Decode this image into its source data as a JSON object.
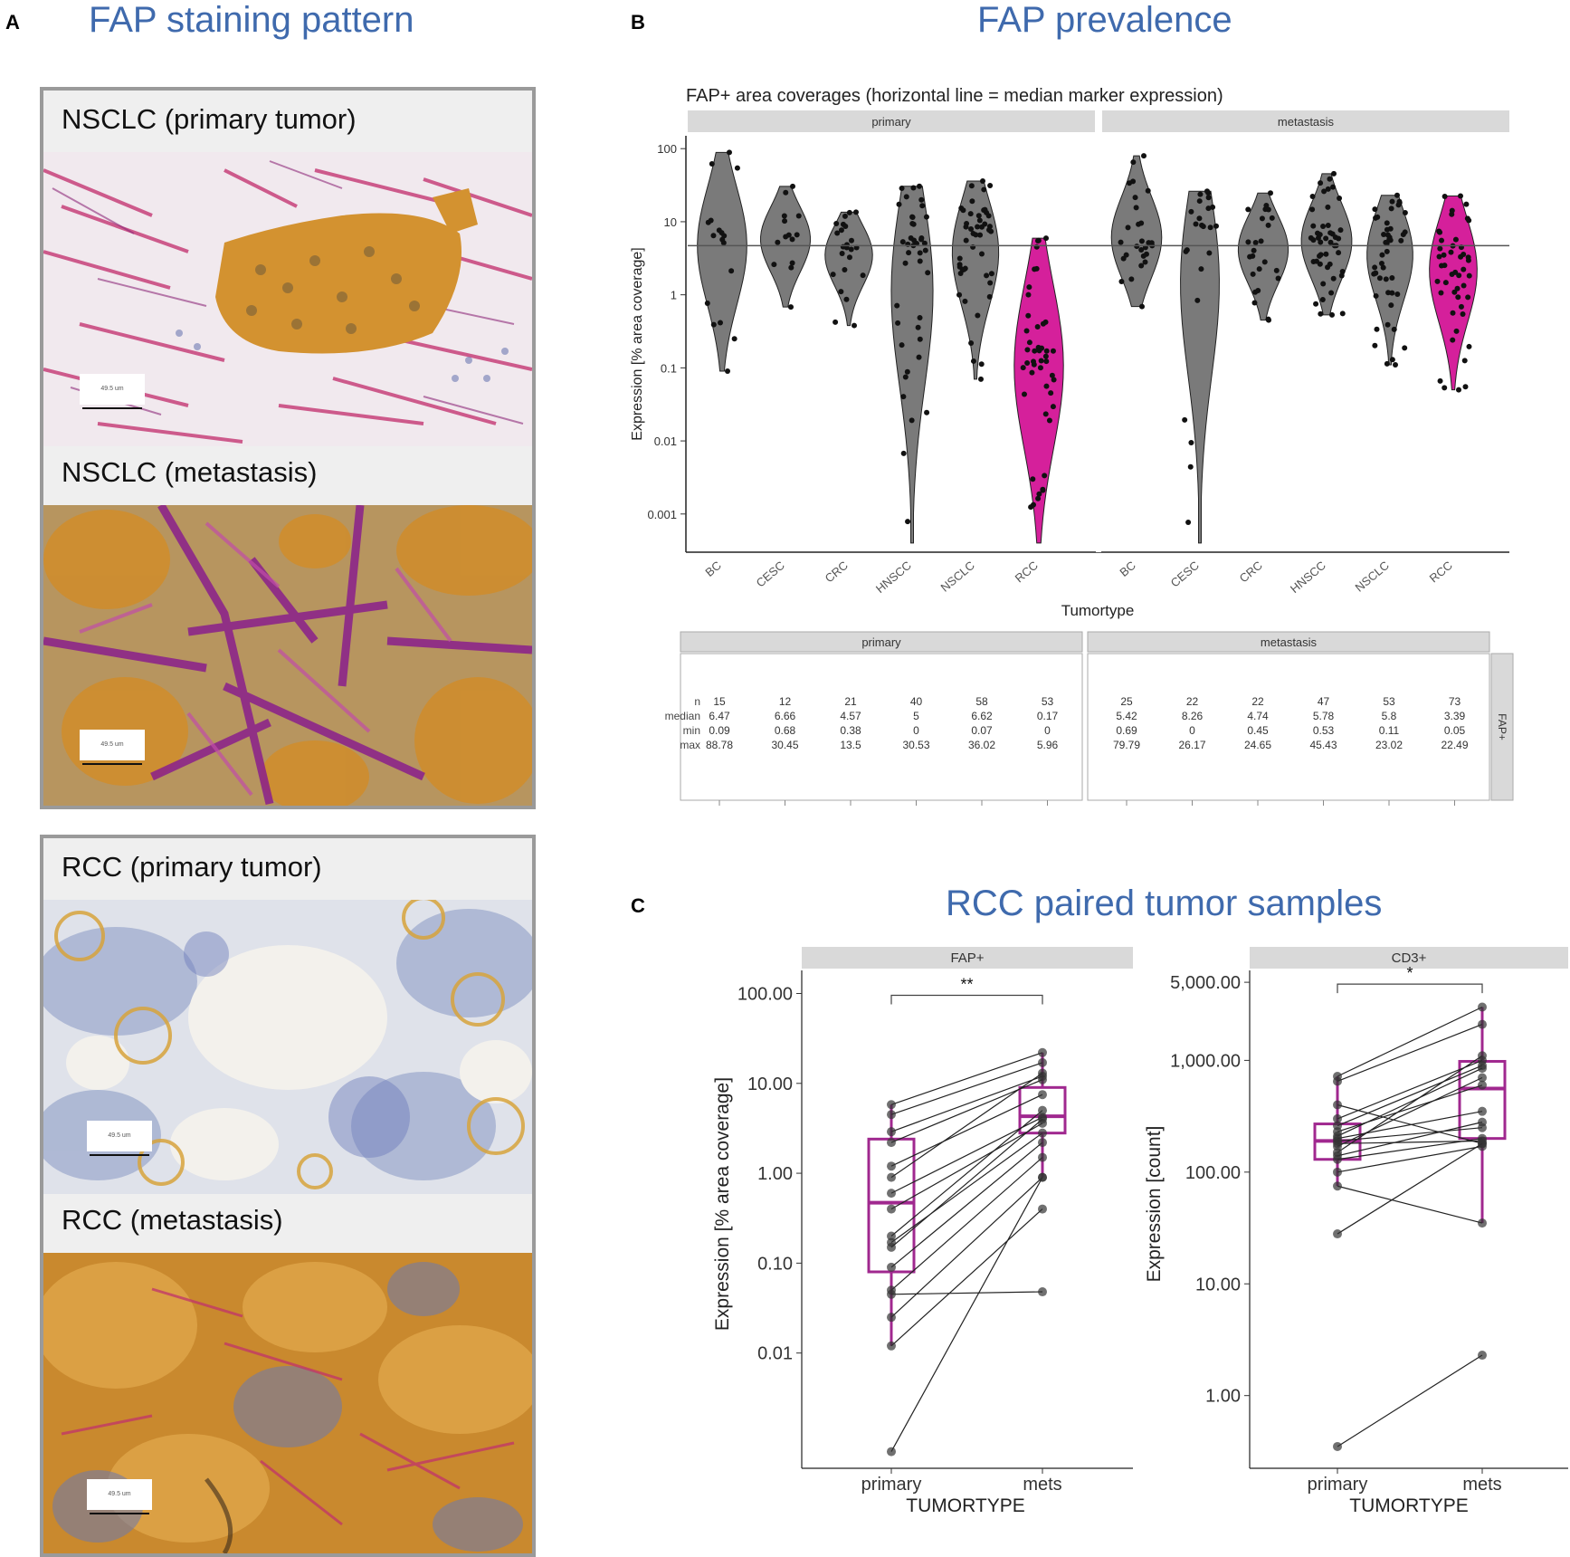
{
  "panel_a": {
    "letter": "A",
    "title": "FAP staining pattern",
    "images": [
      {
        "caption": "NSCLC (primary tumor)",
        "scale_label": "49.5 um"
      },
      {
        "caption": "NSCLC (metastasis)",
        "scale_label": "49.5 um"
      },
      {
        "caption": "RCC (primary tumor)",
        "scale_label": "49.5 um"
      },
      {
        "caption": "RCC (metastasis)",
        "scale_label": "49.5 um"
      }
    ]
  },
  "panel_b": {
    "letter": "B",
    "title": "FAP prevalence"
  },
  "panel_c": {
    "letter": "C",
    "title": "RCC paired tumor samples"
  },
  "colors": {
    "rcc_magenta": "#d5209b",
    "violin_gray": "#7a7a7a",
    "strip_gray": "#d9d9d9",
    "title_blue": "#3f6aad",
    "box_purple": "#a0288f"
  },
  "chart_data": [
    {
      "type": "violin",
      "title": "FAP+ area coverages (horizontal line = median marker expression)",
      "xlabel": "Tumortype",
      "ylabel": "Expression [% area coverage]",
      "y_scale": "log10",
      "ylim": [
        0.0003,
        150
      ],
      "y_ticks": [
        "100",
        "10",
        "1",
        "0.1",
        "0.01",
        "0.001"
      ],
      "y_tick_values": [
        100,
        10,
        1,
        0.1,
        0.01,
        0.001
      ],
      "overall_median_line": 4.7,
      "facets": [
        "primary",
        "metastasis"
      ],
      "categories": [
        "BC",
        "CESC",
        "CRC",
        "HNSCC",
        "NSCLC",
        "RCC"
      ],
      "series": [
        {
          "facet": "primary",
          "groups": [
            {
              "cat": "BC",
              "n": 15,
              "median": 6.47,
              "min": 0.09,
              "max": 88.78,
              "highlight": false
            },
            {
              "cat": "CESC",
              "n": 12,
              "median": 6.66,
              "min": 0.68,
              "max": 30.45,
              "highlight": false
            },
            {
              "cat": "CRC",
              "n": 21,
              "median": 4.57,
              "min": 0.38,
              "max": 13.5,
              "highlight": false
            },
            {
              "cat": "HNSCC",
              "n": 40,
              "median": 5,
              "min": 0,
              "max": 30.53,
              "highlight": false
            },
            {
              "cat": "NSCLC",
              "n": 58,
              "median": 6.62,
              "min": 0.07,
              "max": 36.02,
              "highlight": false
            },
            {
              "cat": "RCC",
              "n": 53,
              "median": 0.17,
              "min": 0,
              "max": 5.96,
              "highlight": true
            }
          ]
        },
        {
          "facet": "metastasis",
          "groups": [
            {
              "cat": "BC",
              "n": 25,
              "median": 5.42,
              "min": 0.69,
              "max": 79.79,
              "highlight": false
            },
            {
              "cat": "CESC",
              "n": 22,
              "median": 8.26,
              "min": 0,
              "max": 26.17,
              "highlight": false
            },
            {
              "cat": "CRC",
              "n": 22,
              "median": 4.74,
              "min": 0.45,
              "max": 24.65,
              "highlight": false
            },
            {
              "cat": "HNSCC",
              "n": 47,
              "median": 5.78,
              "min": 0.53,
              "max": 45.43,
              "highlight": false
            },
            {
              "cat": "NSCLC",
              "n": 53,
              "median": 5.8,
              "min": 0.11,
              "max": 23.02,
              "highlight": false
            },
            {
              "cat": "RCC",
              "n": 73,
              "median": 3.39,
              "min": 0.05,
              "max": 22.49,
              "highlight": true
            }
          ]
        }
      ]
    },
    {
      "type": "table",
      "facets": [
        "primary",
        "metastasis"
      ],
      "side_label": "FAP+",
      "row_labels": [
        "n",
        "median",
        "min",
        "max"
      ],
      "columns": [
        [
          "15",
          "6.47",
          "0.09",
          "88.78"
        ],
        [
          "12",
          "6.66",
          "0.68",
          "30.45"
        ],
        [
          "21",
          "4.57",
          "0.38",
          "13.5"
        ],
        [
          "40",
          "5",
          "0",
          "30.53"
        ],
        [
          "58",
          "6.62",
          "0.07",
          "36.02"
        ],
        [
          "53",
          "0.17",
          "0",
          "5.96"
        ],
        [
          "25",
          "5.42",
          "0.69",
          "79.79"
        ],
        [
          "22",
          "8.26",
          "0",
          "26.17"
        ],
        [
          "22",
          "4.74",
          "0.45",
          "24.65"
        ],
        [
          "47",
          "5.78",
          "0.53",
          "45.43"
        ],
        [
          "53",
          "5.8",
          "0.11",
          "23.02"
        ],
        [
          "73",
          "3.39",
          "0.05",
          "22.49"
        ]
      ]
    },
    {
      "type": "box-paired",
      "facet": "FAP+",
      "xlabel": "TUMORTYPE",
      "ylabel": "Expression [% area coverage]",
      "y_scale": "log10",
      "categories": [
        "primary",
        "mets"
      ],
      "y_ticks": [
        "100.00",
        "10.00",
        "1.00",
        "0.10",
        "0.01"
      ],
      "y_tick_values": [
        100,
        10,
        1,
        0.1,
        0.01
      ],
      "significance": "**",
      "boxes": [
        {
          "cat": "primary",
          "q1": 0.08,
          "median": 0.47,
          "q3": 2.4,
          "whisker_low": 0.012,
          "whisker_high": 5.8
        },
        {
          "cat": "mets",
          "q1": 2.8,
          "median": 4.3,
          "q3": 9.0,
          "whisker_low": 0.9,
          "whisker_high": 22
        }
      ],
      "pairs": [
        [
          5.8,
          22
        ],
        [
          4.5,
          17
        ],
        [
          2.9,
          12
        ],
        [
          2.2,
          11
        ],
        [
          1.2,
          7.5
        ],
        [
          0.9,
          13
        ],
        [
          0.6,
          4.2
        ],
        [
          0.4,
          3.6
        ],
        [
          0.2,
          5
        ],
        [
          0.17,
          2.8
        ],
        [
          0.15,
          4
        ],
        [
          0.09,
          2.2
        ],
        [
          0.05,
          1.5
        ],
        [
          0.045,
          0.048
        ],
        [
          0.025,
          0.9
        ],
        [
          0.012,
          0.4
        ],
        [
          0.0008,
          0.9
        ]
      ]
    },
    {
      "type": "box-paired",
      "facet": "CD3+",
      "xlabel": "TUMORTYPE",
      "ylabel": "Expression [count]",
      "y_scale": "log10",
      "categories": [
        "primary",
        "mets"
      ],
      "y_ticks": [
        "5,000.00",
        "1,000.00",
        "100.00",
        "10.00",
        "1.00"
      ],
      "y_tick_values": [
        5000,
        1000,
        100,
        10,
        1
      ],
      "significance": "*",
      "boxes": [
        {
          "cat": "primary",
          "q1": 130,
          "median": 190,
          "q3": 270,
          "whisker_low": 75,
          "whisker_high": 720
        },
        {
          "cat": "mets",
          "q1": 200,
          "median": 560,
          "q3": 980,
          "whisker_low": 35,
          "whisker_high": 3000
        }
      ],
      "pairs": [
        [
          720,
          3000
        ],
        [
          650,
          2100
        ],
        [
          400,
          180
        ],
        [
          300,
          1000
        ],
        [
          260,
          900
        ],
        [
          230,
          600
        ],
        [
          210,
          850
        ],
        [
          200,
          350
        ],
        [
          190,
          250
        ],
        [
          180,
          190
        ],
        [
          170,
          700
        ],
        [
          150,
          1100
        ],
        [
          140,
          280
        ],
        [
          130,
          200
        ],
        [
          100,
          170
        ],
        [
          75,
          35
        ],
        [
          28,
          180
        ],
        [
          0.35,
          2.3
        ]
      ]
    }
  ]
}
